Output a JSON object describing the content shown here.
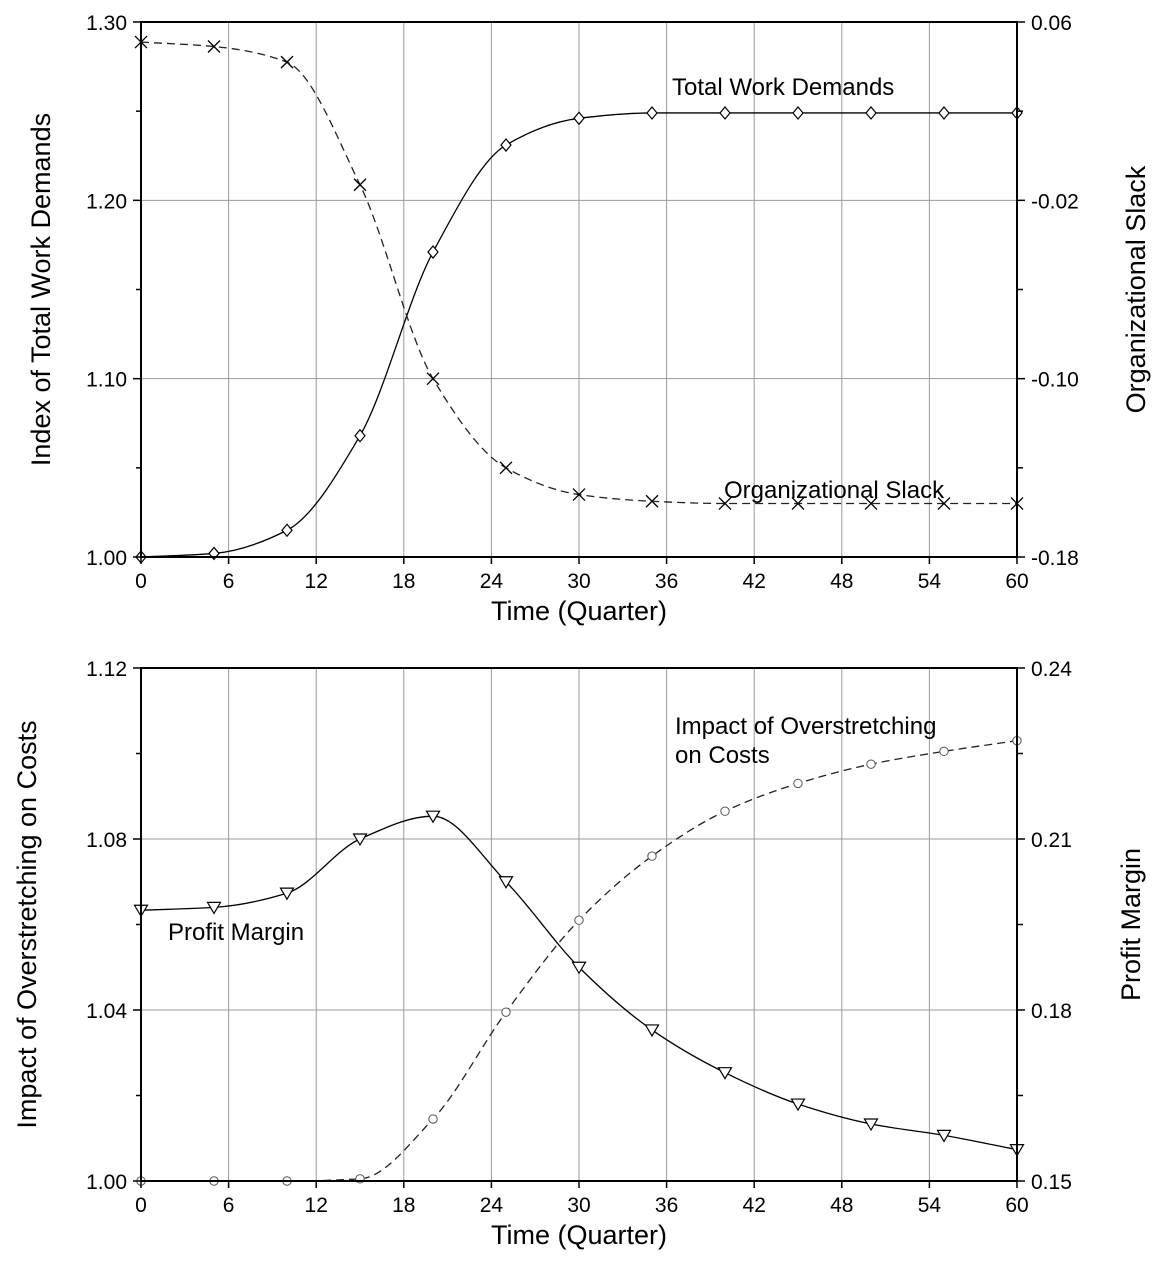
{
  "chart_data": [
    {
      "type": "line",
      "xlabel": "Time (Quarter)",
      "ylabel_left": "Index of Total Work Demands",
      "ylabel_right": "Organizational Slack",
      "xlim": [
        0,
        60
      ],
      "ylim_left": [
        1.0,
        1.3
      ],
      "ylim_right": [
        -0.18,
        0.06
      ],
      "x_ticks": [
        "0",
        "6",
        "12",
        "18",
        "24",
        "30",
        "36",
        "42",
        "48",
        "54",
        "60"
      ],
      "y_left_ticks": [
        {
          "v": 1.0,
          "label": "1.00"
        },
        {
          "v": 1.1,
          "label": "1.10"
        },
        {
          "v": 1.2,
          "label": "1.20"
        },
        {
          "v": 1.3,
          "label": "1.30"
        }
      ],
      "y_right_ticks": [
        {
          "v": -0.18,
          "label": "-0.18"
        },
        {
          "v": -0.1,
          "label": "-0.10"
        },
        {
          "v": -0.02,
          "label": "-0.02"
        },
        {
          "v": 0.06,
          "label": "0.06"
        }
      ],
      "grid": true,
      "series": [
        {
          "name": "Total Work Demands",
          "axis": "left",
          "style": "solid",
          "marker": "diamond",
          "label": "Total Work Demands",
          "x": [
            0,
            5,
            10,
            15,
            20,
            25,
            30,
            35,
            40,
            45,
            50,
            55,
            60
          ],
          "values": [
            1.0,
            1.002,
            1.015,
            1.068,
            1.171,
            1.231,
            1.246,
            1.249,
            1.249,
            1.249,
            1.249,
            1.249,
            1.249
          ]
        },
        {
          "name": "Organizational Slack",
          "axis": "right",
          "style": "dashed",
          "marker": "x",
          "label": "Organizational Slack",
          "x": [
            0,
            5,
            10,
            15,
            20,
            25,
            30,
            35,
            40,
            45,
            50,
            55,
            60
          ],
          "values": [
            0.051,
            0.049,
            0.042,
            -0.013,
            -0.1,
            -0.14,
            -0.152,
            -0.155,
            -0.156,
            -0.156,
            -0.156,
            -0.156,
            -0.156
          ]
        }
      ]
    },
    {
      "type": "line",
      "xlabel": "Time (Quarter)",
      "ylabel_left": "Impact of Overstretching on Costs",
      "ylabel_right": "Profit Margin",
      "xlim": [
        0,
        60
      ],
      "ylim_left": [
        1.0,
        1.12
      ],
      "ylim_right": [
        0.15,
        0.24
      ],
      "x_ticks": [
        "0",
        "6",
        "12",
        "18",
        "24",
        "30",
        "36",
        "42",
        "48",
        "54",
        "60"
      ],
      "y_left_ticks": [
        {
          "v": 1.0,
          "label": "1.00"
        },
        {
          "v": 1.04,
          "label": "1.04"
        },
        {
          "v": 1.08,
          "label": "1.08"
        },
        {
          "v": 1.12,
          "label": "1.12"
        }
      ],
      "y_right_ticks": [
        {
          "v": 0.15,
          "label": "0.15"
        },
        {
          "v": 0.18,
          "label": "0.18"
        },
        {
          "v": 0.21,
          "label": "0.21"
        },
        {
          "v": 0.24,
          "label": "0.24"
        }
      ],
      "grid": true,
      "series": [
        {
          "name": "Impact of Overstretching on Costs",
          "axis": "left",
          "style": "dashed",
          "marker": "circle",
          "label_lines": [
            "Impact of Overstretching",
            " on Costs"
          ],
          "x": [
            0,
            5,
            10,
            15,
            20,
            25,
            30,
            35,
            40,
            45,
            50,
            55,
            60
          ],
          "values": [
            1.0,
            1.0,
            1.0,
            1.0005,
            1.0145,
            1.0395,
            1.061,
            1.076,
            1.0865,
            1.093,
            1.0975,
            1.1005,
            1.103
          ]
        },
        {
          "name": "Profit Margin",
          "axis": "right",
          "style": "solid",
          "marker": "triangle-down",
          "label": "Profit Margin",
          "x": [
            0,
            5,
            10,
            15,
            20,
            25,
            30,
            35,
            40,
            45,
            50,
            55,
            60
          ],
          "values": [
            0.1975,
            0.198,
            0.2005,
            0.21,
            0.214,
            0.2025,
            0.1875,
            0.1765,
            0.169,
            0.1635,
            0.16,
            0.158,
            0.1555
          ]
        }
      ]
    }
  ]
}
